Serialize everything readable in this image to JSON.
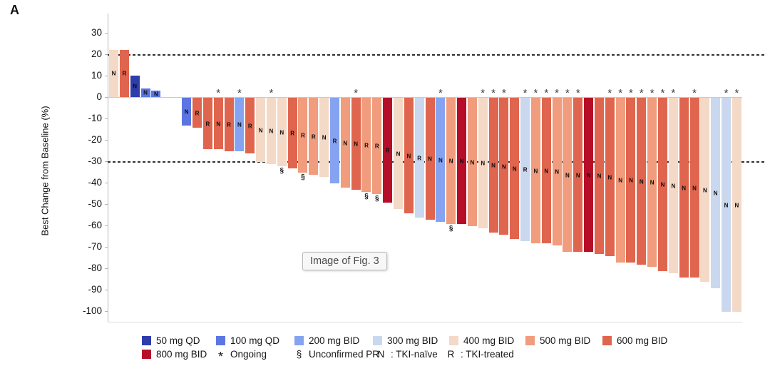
{
  "panel_label": "A",
  "figure_placeholder": "Image of Fig. 3",
  "chart_data": {
    "type": "bar",
    "subtype": "waterfall",
    "title": "",
    "xlabel": "",
    "ylabel": "Best Change from Baseline (%)",
    "ylim": [
      -100,
      30
    ],
    "yticks": [
      30,
      20,
      10,
      0,
      -10,
      -20,
      -30,
      -40,
      -50,
      -60,
      -70,
      -80,
      -90,
      -100
    ],
    "reference_lines": [
      20,
      -30
    ],
    "grid": false,
    "dose_colors": {
      "50 mg QD": "#2f3dab",
      "100 mg QD": "#5b76e3",
      "200 mg BID": "#85a3f0",
      "300 mg BID": "#c9d8ef",
      "400 mg BID": "#f3d9c6",
      "500 mg BID": "#f09c7d",
      "600 mg BID": "#e0654e",
      "800 mg BID": "#b60e28"
    },
    "bars": [
      {
        "value": 22,
        "dose": "400 mg BID",
        "status": "N"
      },
      {
        "value": 22,
        "dose": "600 mg BID",
        "status": "R"
      },
      {
        "value": 10,
        "dose": "50 mg QD",
        "status": "N"
      },
      {
        "value": 4,
        "dose": "100 mg QD",
        "status": "N"
      },
      {
        "value": 3,
        "dose": "100 mg QD",
        "status": "N"
      },
      {
        "value": -13,
        "dose": "100 mg QD",
        "status": "N"
      },
      {
        "value": -14,
        "dose": "600 mg BID",
        "status": "R"
      },
      {
        "value": -24,
        "dose": "600 mg BID",
        "status": "R"
      },
      {
        "value": -24,
        "dose": "600 mg BID",
        "status": "N",
        "ongoing": true
      },
      {
        "value": -25,
        "dose": "600 mg BID",
        "status": "R"
      },
      {
        "value": -25,
        "dose": "200 mg BID",
        "status": "N",
        "ongoing": true
      },
      {
        "value": -26,
        "dose": "600 mg BID",
        "status": "R"
      },
      {
        "value": -30,
        "dose": "400 mg BID",
        "status": "N"
      },
      {
        "value": -31,
        "dose": "400 mg BID",
        "status": "N",
        "ongoing": true
      },
      {
        "value": -32,
        "dose": "400 mg BID",
        "status": "N",
        "unconfirmed_pr": true
      },
      {
        "value": -33,
        "dose": "600 mg BID",
        "status": "R"
      },
      {
        "value": -35,
        "dose": "500 mg BID",
        "status": "R",
        "unconfirmed_pr": true
      },
      {
        "value": -36,
        "dose": "500 mg BID",
        "status": "R"
      },
      {
        "value": -37,
        "dose": "400 mg BID",
        "status": "N"
      },
      {
        "value": -40,
        "dose": "200 mg BID",
        "status": "R"
      },
      {
        "value": -42,
        "dose": "500 mg BID",
        "status": "N"
      },
      {
        "value": -43,
        "dose": "600 mg BID",
        "status": "N",
        "ongoing": true
      },
      {
        "value": -44,
        "dose": "500 mg BID",
        "status": "R",
        "unconfirmed_pr": true
      },
      {
        "value": -45,
        "dose": "500 mg BID",
        "status": "R",
        "unconfirmed_pr": true
      },
      {
        "value": -49,
        "dose": "800 mg BID",
        "status": "R"
      },
      {
        "value": -52,
        "dose": "400 mg BID",
        "status": "N"
      },
      {
        "value": -54,
        "dose": "600 mg BID",
        "status": "N"
      },
      {
        "value": -56,
        "dose": "300 mg BID",
        "status": "R"
      },
      {
        "value": -57,
        "dose": "600 mg BID",
        "status": "N"
      },
      {
        "value": -58,
        "dose": "200 mg BID",
        "status": "N",
        "ongoing": true
      },
      {
        "value": -59,
        "dose": "500 mg BID",
        "status": "N",
        "unconfirmed_pr": true
      },
      {
        "value": -59,
        "dose": "800 mg BID",
        "status": "N"
      },
      {
        "value": -60,
        "dose": "500 mg BID",
        "status": "N"
      },
      {
        "value": -61,
        "dose": "400 mg BID",
        "status": "N",
        "ongoing": true
      },
      {
        "value": -63,
        "dose": "600 mg BID",
        "status": "N",
        "ongoing": true
      },
      {
        "value": -64,
        "dose": "600 mg BID",
        "status": "N",
        "ongoing": true
      },
      {
        "value": -66,
        "dose": "600 mg BID",
        "status": "N"
      },
      {
        "value": -67,
        "dose": "300 mg BID",
        "status": "R",
        "ongoing": true
      },
      {
        "value": -68,
        "dose": "500 mg BID",
        "status": "N",
        "ongoing": true
      },
      {
        "value": -68,
        "dose": "600 mg BID",
        "status": "N",
        "ongoing": true
      },
      {
        "value": -69,
        "dose": "500 mg BID",
        "status": "N",
        "ongoing": true
      },
      {
        "value": -72,
        "dose": "500 mg BID",
        "status": "N",
        "ongoing": true
      },
      {
        "value": -72,
        "dose": "600 mg BID",
        "status": "N",
        "ongoing": true
      },
      {
        "value": -72,
        "dose": "800 mg BID",
        "status": "N"
      },
      {
        "value": -73,
        "dose": "600 mg BID",
        "status": "N"
      },
      {
        "value": -74,
        "dose": "600 mg BID",
        "status": "N",
        "ongoing": true
      },
      {
        "value": -77,
        "dose": "500 mg BID",
        "status": "N",
        "ongoing": true
      },
      {
        "value": -77,
        "dose": "600 mg BID",
        "status": "N",
        "ongoing": true
      },
      {
        "value": -78,
        "dose": "600 mg BID",
        "status": "N",
        "ongoing": true
      },
      {
        "value": -79,
        "dose": "500 mg BID",
        "status": "N",
        "ongoing": true
      },
      {
        "value": -81,
        "dose": "600 mg BID",
        "status": "N",
        "ongoing": true
      },
      {
        "value": -82,
        "dose": "400 mg BID",
        "status": "N",
        "ongoing": true
      },
      {
        "value": -84,
        "dose": "600 mg BID",
        "status": "N"
      },
      {
        "value": -84,
        "dose": "600 mg BID",
        "status": "N",
        "ongoing": true
      },
      {
        "value": -86,
        "dose": "400 mg BID",
        "status": "N"
      },
      {
        "value": -89,
        "dose": "300 mg BID",
        "status": "N"
      },
      {
        "value": -100,
        "dose": "300 mg BID",
        "status": "N",
        "ongoing": true
      },
      {
        "value": -100,
        "dose": "400 mg BID",
        "status": "N",
        "ongoing": true
      }
    ],
    "legend": {
      "row1": [
        {
          "swatch": "#2f3dab",
          "label": "50 mg QD"
        },
        {
          "swatch": "#5b76e3",
          "label": "100 mg QD"
        },
        {
          "swatch": "#85a3f0",
          "label": "200 mg BID"
        },
        {
          "swatch": "#c9d8ef",
          "label": "300 mg BID"
        },
        {
          "swatch": "#f3d9c6",
          "label": "400 mg BID"
        },
        {
          "swatch": "#f09c7d",
          "label": "500 mg BID"
        },
        {
          "swatch": "#e0654e",
          "label": "600 mg BID"
        }
      ],
      "row2": [
        {
          "swatch": "#b60e28",
          "label": "800 mg BID"
        },
        {
          "symbol": "*",
          "label": "Ongoing"
        },
        {
          "symbol": "§",
          "label": "Unconfirmed PR"
        },
        {
          "symbol": "N",
          "label": ": TKI-naïve"
        },
        {
          "symbol": "R",
          "label": ": TKI-treated"
        }
      ]
    }
  }
}
